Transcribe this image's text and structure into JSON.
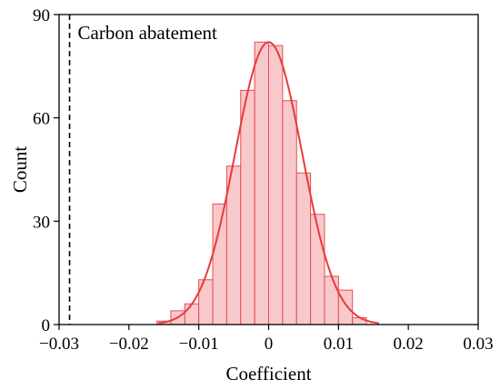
{
  "chart_data": {
    "type": "histogram",
    "title": "",
    "xlabel": "Coefficient",
    "ylabel": "Count",
    "xlim": [
      -0.03,
      0.03
    ],
    "ylim": [
      0,
      90
    ],
    "xticks": [
      -0.03,
      -0.02,
      -0.01,
      0,
      0.01,
      0.02,
      0.03
    ],
    "xtick_labels": [
      "−0.03",
      "−0.02",
      "−0.01",
      "0",
      "0.01",
      "0.02",
      "0.03"
    ],
    "yticks": [
      0,
      30,
      60,
      90
    ],
    "ytick_labels": [
      "0",
      "30",
      "60",
      "90"
    ],
    "bin_width": 0.002,
    "bins": [
      {
        "x0": -0.016,
        "x1": -0.014,
        "count": 1
      },
      {
        "x0": -0.014,
        "x1": -0.012,
        "count": 4
      },
      {
        "x0": -0.012,
        "x1": -0.01,
        "count": 6
      },
      {
        "x0": -0.01,
        "x1": -0.008,
        "count": 13
      },
      {
        "x0": -0.008,
        "x1": -0.006,
        "count": 35
      },
      {
        "x0": -0.006,
        "x1": -0.004,
        "count": 46
      },
      {
        "x0": -0.004,
        "x1": -0.002,
        "count": 68
      },
      {
        "x0": -0.002,
        "x1": 0.0,
        "count": 82
      },
      {
        "x0": 0.0,
        "x1": 0.002,
        "count": 81
      },
      {
        "x0": 0.002,
        "x1": 0.004,
        "count": 65
      },
      {
        "x0": 0.004,
        "x1": 0.006,
        "count": 44
      },
      {
        "x0": 0.006,
        "x1": 0.008,
        "count": 32
      },
      {
        "x0": 0.008,
        "x1": 0.01,
        "count": 14
      },
      {
        "x0": 0.01,
        "x1": 0.012,
        "count": 10
      },
      {
        "x0": 0.012,
        "x1": 0.014,
        "count": 2
      }
    ],
    "density_curve": {
      "mean": 0.0,
      "sd": 0.0048,
      "peak": 82,
      "x_range": [
        -0.0158,
        0.0158
      ],
      "color": "#e83a3a"
    },
    "reference_line": {
      "x": -0.0285,
      "style": "dashed",
      "color": "#000000",
      "label": "Carbon abatement"
    },
    "bar_fill": "#f8c9cb",
    "bar_edge": "#e84a4f",
    "grid": false,
    "legend": false
  }
}
